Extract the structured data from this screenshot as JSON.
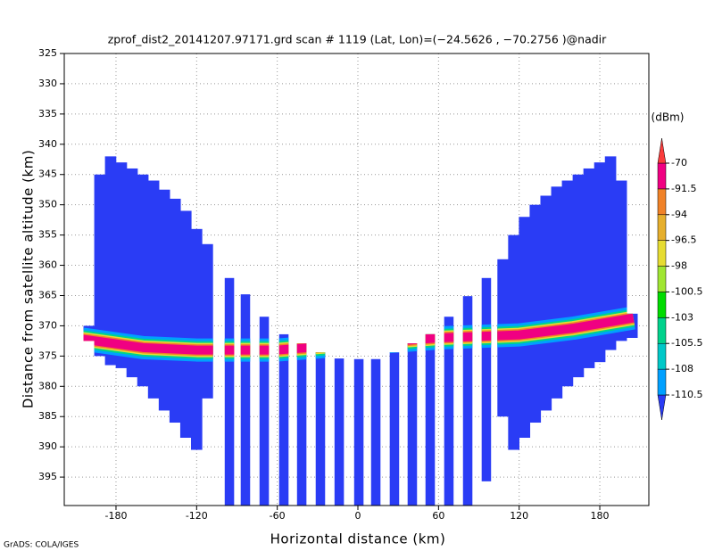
{
  "chart_data": {
    "type": "heatmap",
    "title": "zprof_dist2_20141207.97171.grd  scan # 1119  (Lat, Lon)=(−24.5626 , −70.2756 )@nadir",
    "x_label": "Horizontal distance (km)",
    "y_label": "Distance from satellite altitude (km)",
    "colorbar_label": "(dBm)",
    "footer": "GrADS: COLA/IGES",
    "xlim": [
      -218.5,
      216.5
    ],
    "ylim": [
      325,
      399.7
    ],
    "y_inverted": true,
    "xticks": [
      -180,
      -120,
      -60,
      0,
      60,
      120,
      180
    ],
    "yticks": [
      325,
      330,
      335,
      340,
      345,
      350,
      355,
      360,
      365,
      370,
      375,
      380,
      385,
      390,
      395
    ],
    "grid": true,
    "levels": [
      -110.5,
      -108,
      -105.5,
      -103,
      -100.5,
      -98,
      -96.5,
      -94,
      -91.5,
      -70
    ],
    "colors": [
      "#2a3cf5",
      "#00a0ff",
      "#00c8c8",
      "#00d28c",
      "#00dc00",
      "#a0e632",
      "#e6dc32",
      "#e6af2d",
      "#f08228",
      "#f00082",
      "#fa3c3c"
    ],
    "columns": [
      {
        "x": -200,
        "top": 370,
        "bottom": 372.5
      },
      {
        "x": -192,
        "top": 345,
        "bottom": 375
      },
      {
        "x": -184,
        "top": 342,
        "bottom": 376.5
      },
      {
        "x": -176,
        "top": 343,
        "bottom": 377
      },
      {
        "x": -168,
        "top": 344,
        "bottom": 378.5
      },
      {
        "x": -160,
        "top": 345,
        "bottom": 380
      },
      {
        "x": -152,
        "top": 346,
        "bottom": 382
      },
      {
        "x": -144,
        "top": 347.5,
        "bottom": 384
      },
      {
        "x": -136,
        "top": 349,
        "bottom": 386
      },
      {
        "x": -128,
        "top": 351,
        "bottom": 388.5
      },
      {
        "x": -120,
        "top": 354,
        "bottom": 390.5
      },
      {
        "x": -112,
        "top": 356.5,
        "bottom": 382
      },
      {
        "x": -95.6,
        "top": 362.1,
        "bottom": 399.7
      },
      {
        "x": -83.7,
        "top": 364.8,
        "bottom": 399.7
      },
      {
        "x": -69.7,
        "top": 368.5,
        "bottom": 399.7
      },
      {
        "x": -55.1,
        "top": 371.4,
        "bottom": 399.7
      },
      {
        "x": -41.8,
        "top": 372.9,
        "bottom": 399.7
      },
      {
        "x": -27.9,
        "top": 374.4,
        "bottom": 399.7
      },
      {
        "x": -13.9,
        "top": 375.4,
        "bottom": 399.7
      },
      {
        "x": 0.7,
        "top": 375.5,
        "bottom": 399.7
      },
      {
        "x": 13.3,
        "top": 375.5,
        "bottom": 399.7
      },
      {
        "x": 27.2,
        "top": 374.4,
        "bottom": 399.7
      },
      {
        "x": 40.5,
        "top": 372.9,
        "bottom": 399.7
      },
      {
        "x": 53.8,
        "top": 371.4,
        "bottom": 399.7
      },
      {
        "x": 67.7,
        "top": 368.5,
        "bottom": 399.7
      },
      {
        "x": 81.7,
        "top": 365.1,
        "bottom": 399.7
      },
      {
        "x": 95.6,
        "top": 362.1,
        "bottom": 395.7
      },
      {
        "x": 108,
        "top": 359,
        "bottom": 385
      },
      {
        "x": 116,
        "top": 355,
        "bottom": 390.5
      },
      {
        "x": 124,
        "top": 352,
        "bottom": 388.5
      },
      {
        "x": 132,
        "top": 350,
        "bottom": 386
      },
      {
        "x": 140,
        "top": 348.5,
        "bottom": 384
      },
      {
        "x": 148,
        "top": 347,
        "bottom": 382
      },
      {
        "x": 156,
        "top": 346,
        "bottom": 380
      },
      {
        "x": 164,
        "top": 345,
        "bottom": 378.5
      },
      {
        "x": 172,
        "top": 344,
        "bottom": 377
      },
      {
        "x": 180,
        "top": 343,
        "bottom": 376
      },
      {
        "x": 188,
        "top": 342,
        "bottom": 374
      },
      {
        "x": 196,
        "top": 346,
        "bottom": 372.5
      },
      {
        "x": 204,
        "top": 368,
        "bottom": 372
      }
    ],
    "surface": {
      "x": [
        -205,
        -160,
        -120,
        -60,
        0,
        60,
        120,
        160,
        205
      ],
      "y": [
        372.2,
        373.6,
        374,
        374,
        373,
        372,
        371.5,
        370.4,
        368.7
      ]
    }
  }
}
